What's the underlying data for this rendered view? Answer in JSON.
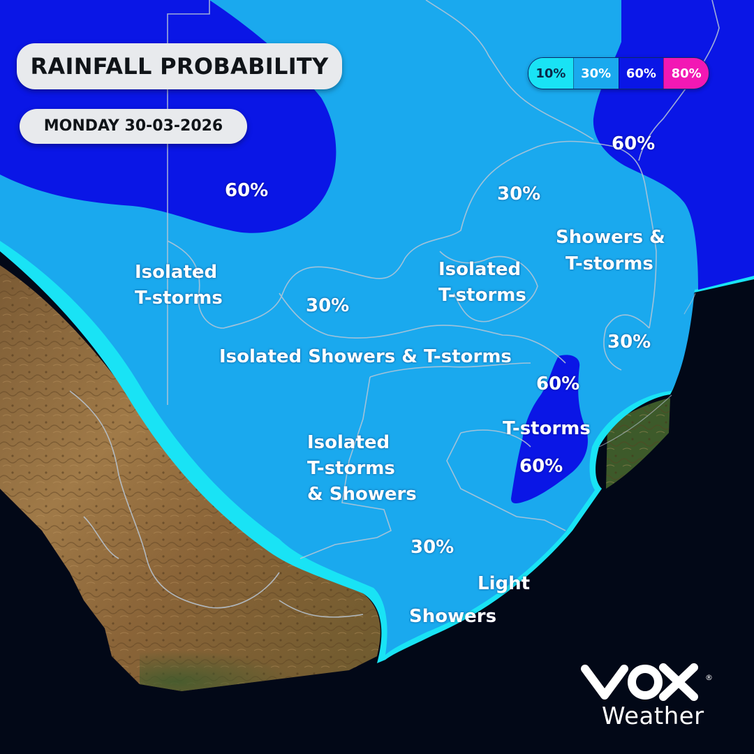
{
  "header": {
    "title": "RAINFALL PROBABILITY",
    "date": "MONDAY 30-03-2026"
  },
  "legend": [
    {
      "label": "10%",
      "color": "#19e3f5",
      "text_color": "#0a2a4a"
    },
    {
      "label": "30%",
      "color": "#1aa9ee",
      "text_color": "#ffffff"
    },
    {
      "label": "60%",
      "color": "#0a16e6",
      "text_color": "#ffffff"
    },
    {
      "label": "80%",
      "color": "#f218b4",
      "text_color": "#ffffff"
    }
  ],
  "colors": {
    "ocean": "#020817",
    "probability_10": "#19e3f5",
    "probability_30": "#1aa9ee",
    "probability_60": "#0a16e6",
    "land": "#8f6a3c",
    "borders": "#b9c7d6"
  },
  "map_labels": {
    "nw_60": "60%",
    "ne_60": "60%",
    "north_30": "30%",
    "nw_isolated_1": "Isolated",
    "nw_isolated_2": "T-storms",
    "central_30": "30%",
    "central_isolated_1": "Isolated",
    "central_isolated_2": "T-storms",
    "ne_showers_1": "Showers &",
    "ne_showers_2": "T-storms",
    "east_30": "30%",
    "central_band": "Isolated Showers & T-storms",
    "kzn_60_top": "60%",
    "kzn_tstorms": "T-storms",
    "kzn_60_bottom": "60%",
    "south_isolated_1": "Isolated",
    "south_isolated_2": "T-storms",
    "south_isolated_3": "& Showers",
    "south_30": "30%",
    "light_1": "Light",
    "light_2": "Showers"
  },
  "logo": {
    "brand_icon": "vox-logo-icon",
    "wordmark": "Weather",
    "registered": "®"
  }
}
